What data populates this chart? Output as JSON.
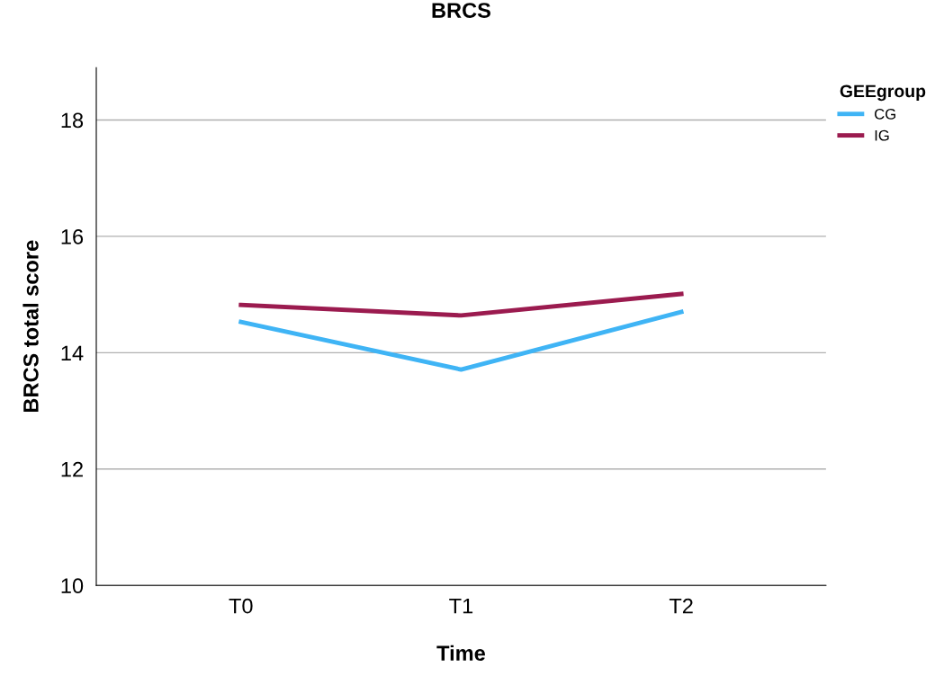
{
  "chart_data": {
    "type": "line",
    "title": "BRCS",
    "xlabel": "Time",
    "ylabel": "BRCS total score",
    "legend_title": "GEEgroup",
    "categories": [
      "T0",
      "T1",
      "T2"
    ],
    "series": [
      {
        "name": "CG",
        "color": "#3fb4f5",
        "values": [
          14.53,
          13.71,
          14.7
        ]
      },
      {
        "name": "IG",
        "color": "#9b1b4f",
        "values": [
          14.82,
          14.64,
          15.01
        ]
      }
    ],
    "ylim": [
      10,
      18.9
    ],
    "yticks": [
      10,
      12,
      14,
      16,
      18
    ],
    "grid": "y",
    "legend": "top right",
    "marker": "none",
    "line_style": "solid"
  }
}
